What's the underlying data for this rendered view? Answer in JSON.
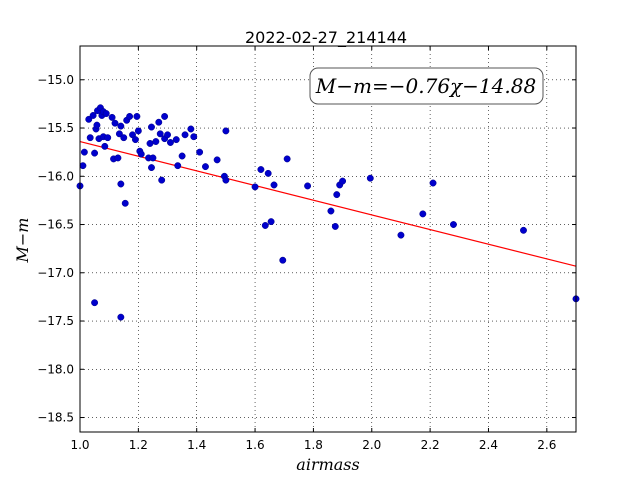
{
  "chart_data": {
    "type": "scatter",
    "title": "2022-02-27_214144",
    "xlabel": "airmass",
    "ylabel": "M−m",
    "xlim": [
      1.0,
      2.7
    ],
    "ylim": [
      -18.65,
      -14.65
    ],
    "y_inverted": true,
    "grid": true,
    "x_ticks": [
      1.0,
      1.2,
      1.4,
      1.6,
      1.8,
      2.0,
      2.2,
      2.4,
      2.6
    ],
    "x_tick_labels": [
      "1.0",
      "1.2",
      "1.4",
      "1.6",
      "1.8",
      "2.0",
      "2.2",
      "2.4",
      "2.6"
    ],
    "y_ticks": [
      -15.0,
      -15.5,
      -16.0,
      -16.5,
      -17.0,
      -17.5,
      -18.0,
      -18.5
    ],
    "y_tick_labels": [
      "−15.0",
      "−15.5",
      "−16.0",
      "−16.5",
      "−17.0",
      "−17.5",
      "−18.0",
      "−18.5"
    ],
    "annotation": "M−m=−0.76χ−14.88",
    "fit": {
      "slope": -0.76,
      "intercept": -14.88,
      "x_range": [
        1.0,
        2.7
      ],
      "color": "#ff0000"
    },
    "point_color": "#0000cc",
    "points": [
      [
        1.0,
        -16.1
      ],
      [
        1.01,
        -15.89
      ],
      [
        1.015,
        -15.75
      ],
      [
        1.03,
        -15.41
      ],
      [
        1.035,
        -15.6
      ],
      [
        1.045,
        -15.37
      ],
      [
        1.05,
        -15.76
      ],
      [
        1.055,
        -15.51
      ],
      [
        1.058,
        -15.47
      ],
      [
        1.06,
        -15.32
      ],
      [
        1.065,
        -15.61
      ],
      [
        1.07,
        -15.29
      ],
      [
        1.075,
        -15.37
      ],
      [
        1.08,
        -15.33
      ],
      [
        1.08,
        -15.59
      ],
      [
        1.085,
        -15.69
      ],
      [
        1.09,
        -15.35
      ],
      [
        1.095,
        -15.6
      ],
      [
        1.11,
        -15.39
      ],
      [
        1.115,
        -15.82
      ],
      [
        1.12,
        -15.45
      ],
      [
        1.13,
        -15.81
      ],
      [
        1.135,
        -15.56
      ],
      [
        1.14,
        -15.48
      ],
      [
        1.14,
        -16.08
      ],
      [
        1.15,
        -15.6
      ],
      [
        1.155,
        -16.28
      ],
      [
        1.16,
        -15.42
      ],
      [
        1.17,
        -15.38
      ],
      [
        1.18,
        -15.57
      ],
      [
        1.19,
        -15.62
      ],
      [
        1.195,
        -15.38
      ],
      [
        1.2,
        -15.53
      ],
      [
        1.205,
        -15.74
      ],
      [
        1.21,
        -15.77
      ],
      [
        1.235,
        -15.81
      ],
      [
        1.24,
        -15.66
      ],
      [
        1.245,
        -15.91
      ],
      [
        1.245,
        -15.49
      ],
      [
        1.25,
        -15.81
      ],
      [
        1.26,
        -15.64
      ],
      [
        1.27,
        -15.44
      ],
      [
        1.275,
        -15.56
      ],
      [
        1.28,
        -16.04
      ],
      [
        1.29,
        -15.61
      ],
      [
        1.29,
        -15.38
      ],
      [
        1.3,
        -15.57
      ],
      [
        1.31,
        -15.65
      ],
      [
        1.33,
        -15.62
      ],
      [
        1.335,
        -15.89
      ],
      [
        1.35,
        -15.79
      ],
      [
        1.36,
        -15.57
      ],
      [
        1.38,
        -15.51
      ],
      [
        1.39,
        -15.59
      ],
      [
        1.41,
        -15.75
      ],
      [
        1.43,
        -15.9
      ],
      [
        1.47,
        -15.83
      ],
      [
        1.495,
        -16.0
      ],
      [
        1.5,
        -15.53
      ],
      [
        1.5,
        -16.04
      ],
      [
        1.05,
        -17.31
      ],
      [
        1.14,
        -17.46
      ],
      [
        1.6,
        -16.11
      ],
      [
        1.62,
        -15.93
      ],
      [
        1.635,
        -16.51
      ],
      [
        1.645,
        -15.97
      ],
      [
        1.655,
        -16.47
      ],
      [
        1.665,
        -16.09
      ],
      [
        1.695,
        -16.87
      ],
      [
        1.71,
        -15.82
      ],
      [
        1.78,
        -16.1
      ],
      [
        1.86,
        -16.36
      ],
      [
        1.875,
        -16.52
      ],
      [
        1.88,
        -16.19
      ],
      [
        1.89,
        -16.09
      ],
      [
        1.9,
        -16.05
      ],
      [
        1.995,
        -16.02
      ],
      [
        2.1,
        -16.61
      ],
      [
        2.175,
        -16.39
      ],
      [
        2.21,
        -16.07
      ],
      [
        2.28,
        -16.5
      ],
      [
        2.52,
        -16.56
      ],
      [
        2.7,
        -17.27
      ]
    ]
  }
}
